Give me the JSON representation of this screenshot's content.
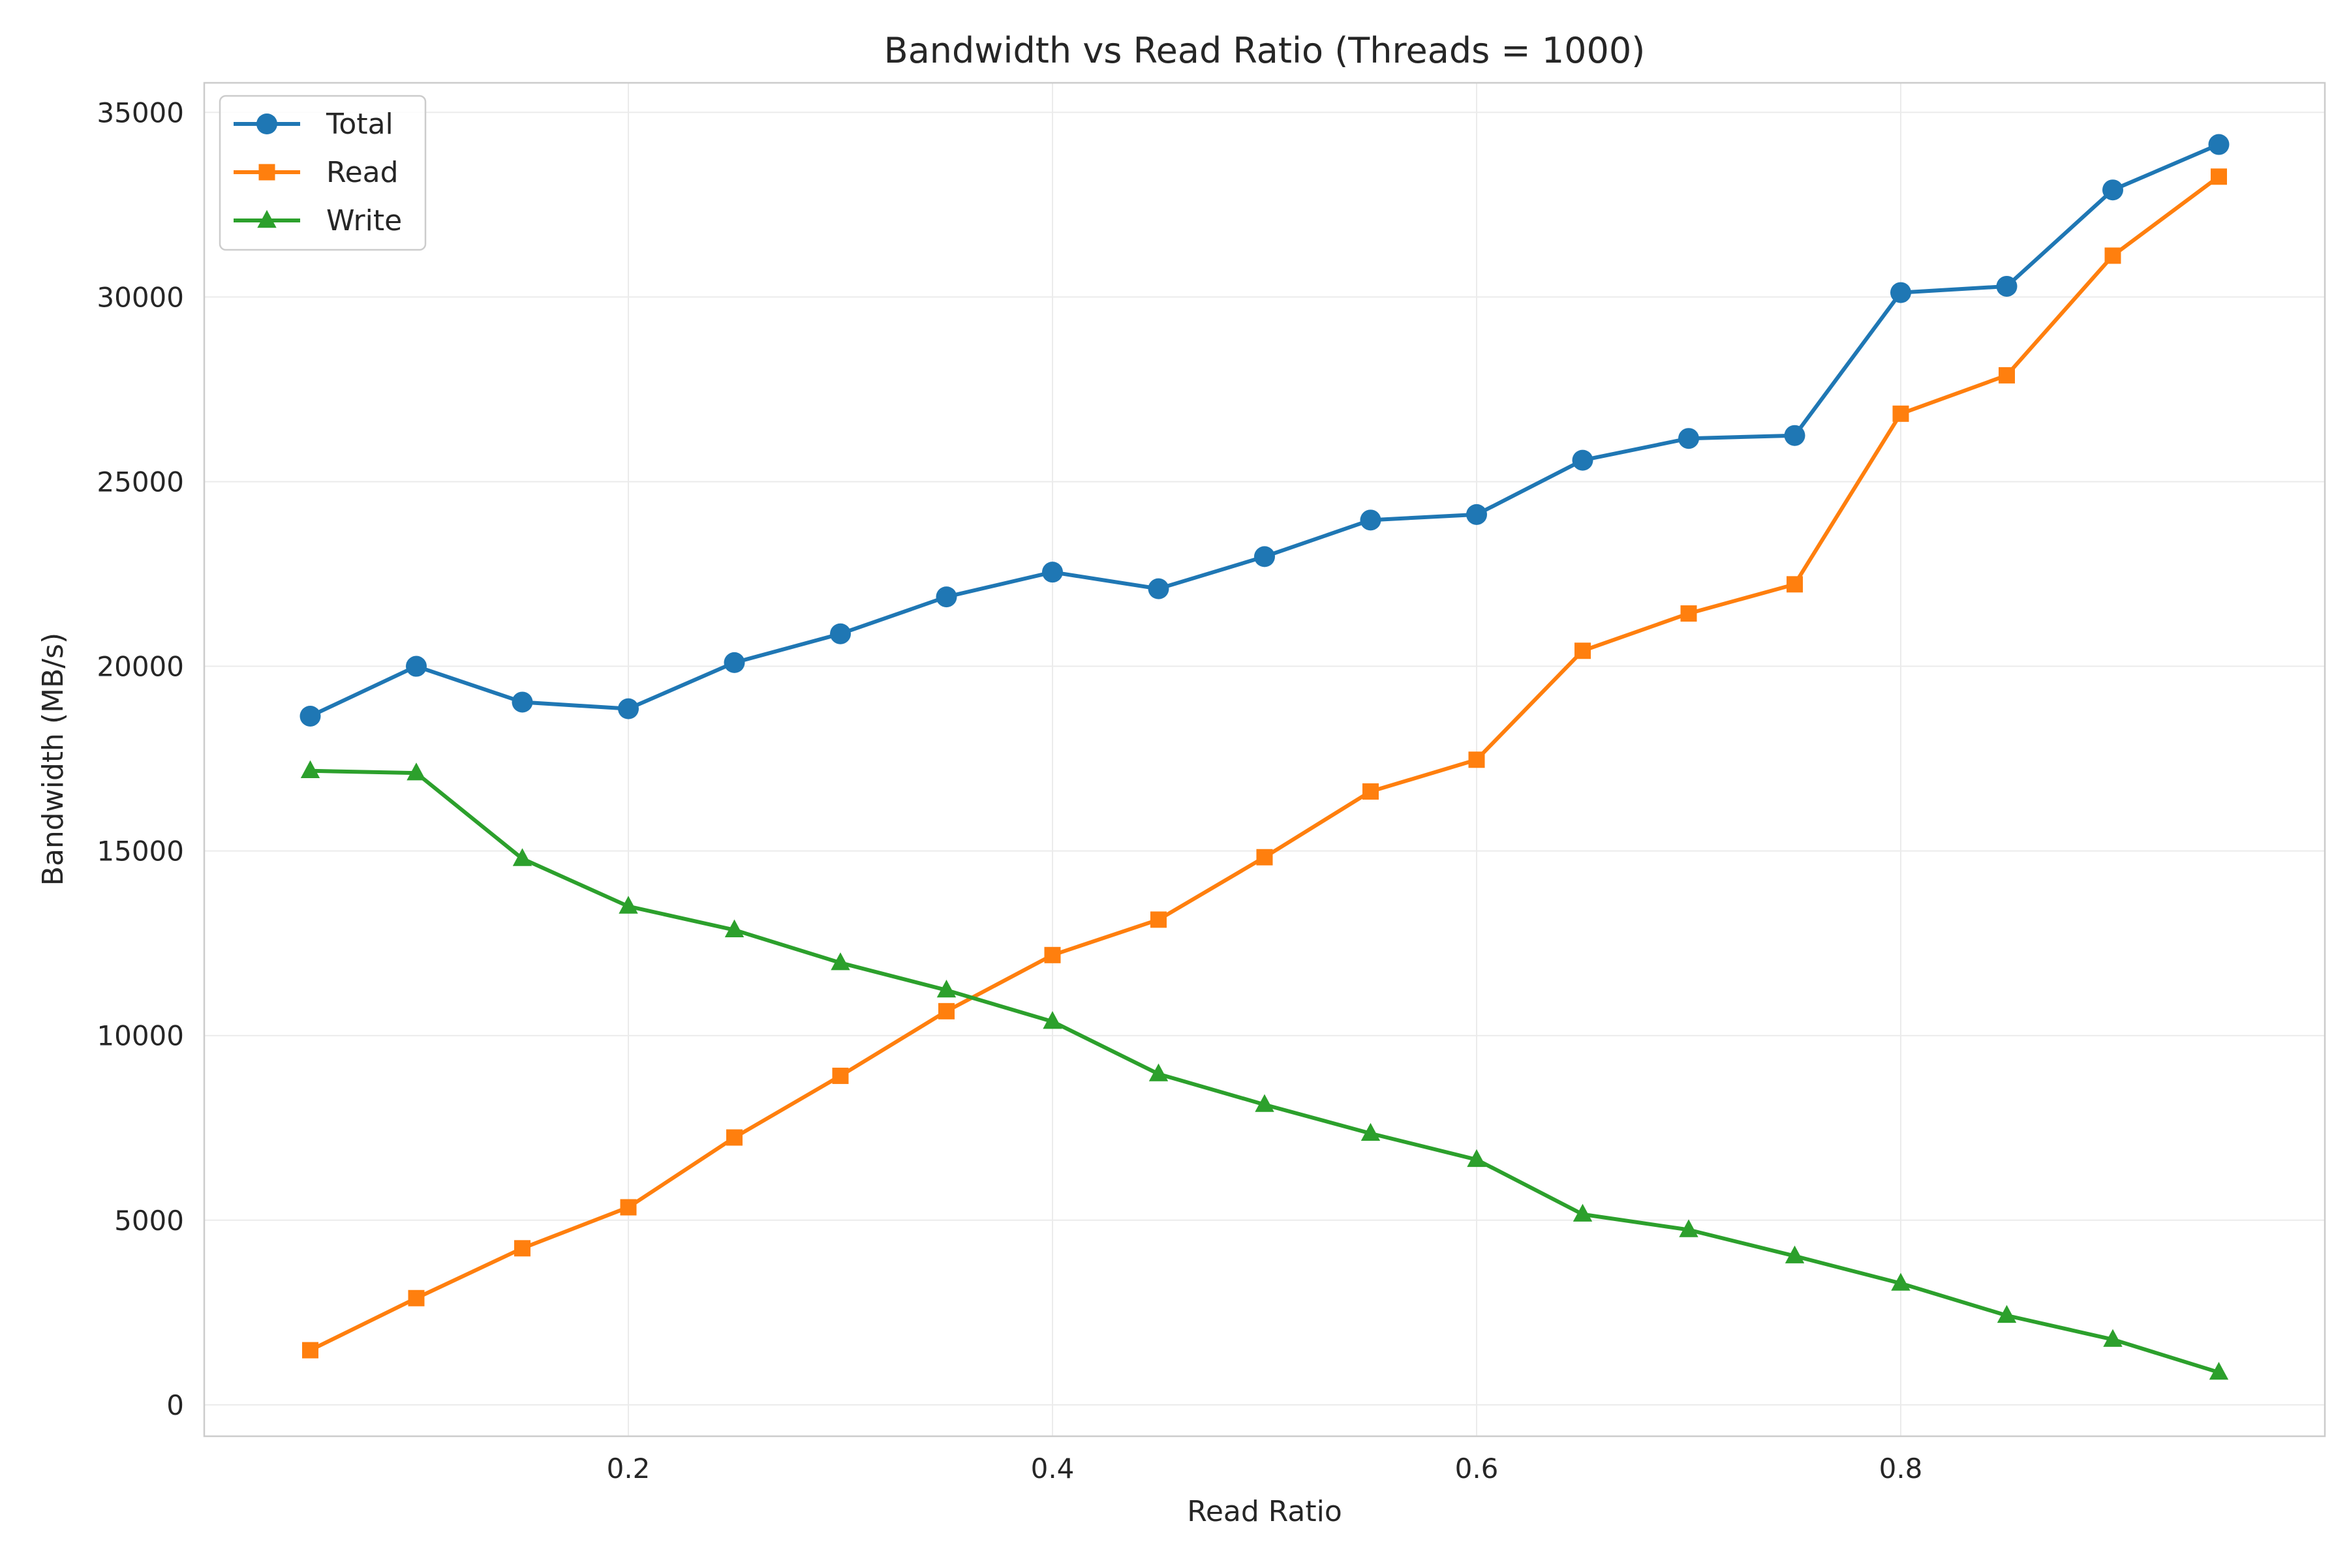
{
  "chart_data": {
    "type": "line",
    "title": "Bandwidth vs Read Ratio (Threads = 1000)",
    "xlabel": "Read Ratio",
    "ylabel": "Bandwidth (MB/s)",
    "xlim": [
      0.0,
      1.0
    ],
    "ylim": [
      -850,
      35800
    ],
    "x_ticks": [
      0.2,
      0.4,
      0.6,
      0.8
    ],
    "x_tick_labels": [
      "0.2",
      "0.4",
      "0.6",
      "0.8"
    ],
    "y_ticks": [
      0,
      5000,
      10000,
      15000,
      20000,
      25000,
      30000,
      35000
    ],
    "y_tick_labels": [
      "0",
      "5000",
      "10000",
      "15000",
      "20000",
      "25000",
      "30000",
      "35000"
    ],
    "grid": true,
    "legend_position": "top-left",
    "x": [
      0.05,
      0.1,
      0.15,
      0.2,
      0.25,
      0.3,
      0.35,
      0.4,
      0.45,
      0.5,
      0.55,
      0.6,
      0.65,
      0.7,
      0.75,
      0.8,
      0.85,
      0.9,
      0.95
    ],
    "series": [
      {
        "name": "Total",
        "color": "#1f77b4",
        "marker": "circle",
        "values": [
          18650,
          20000,
          19030,
          18850,
          20100,
          20880,
          21880,
          22550,
          22100,
          22970,
          23960,
          24110,
          25580,
          26170,
          26250,
          30120,
          30290,
          32900,
          34130
        ]
      },
      {
        "name": "Read",
        "color": "#ff7f0e",
        "marker": "square",
        "values": [
          1480,
          2890,
          4240,
          5350,
          7240,
          8910,
          10660,
          12180,
          13140,
          14830,
          16610,
          17470,
          20420,
          21430,
          22220,
          26840,
          27880,
          31120,
          33260
        ]
      },
      {
        "name": "Write",
        "color": "#2ca02c",
        "marker": "triangle",
        "values": [
          17170,
          17110,
          14790,
          13500,
          12860,
          11970,
          11230,
          10380,
          8960,
          8130,
          7350,
          6640,
          5160,
          4740,
          4030,
          3290,
          2420,
          1770,
          880
        ]
      }
    ]
  }
}
